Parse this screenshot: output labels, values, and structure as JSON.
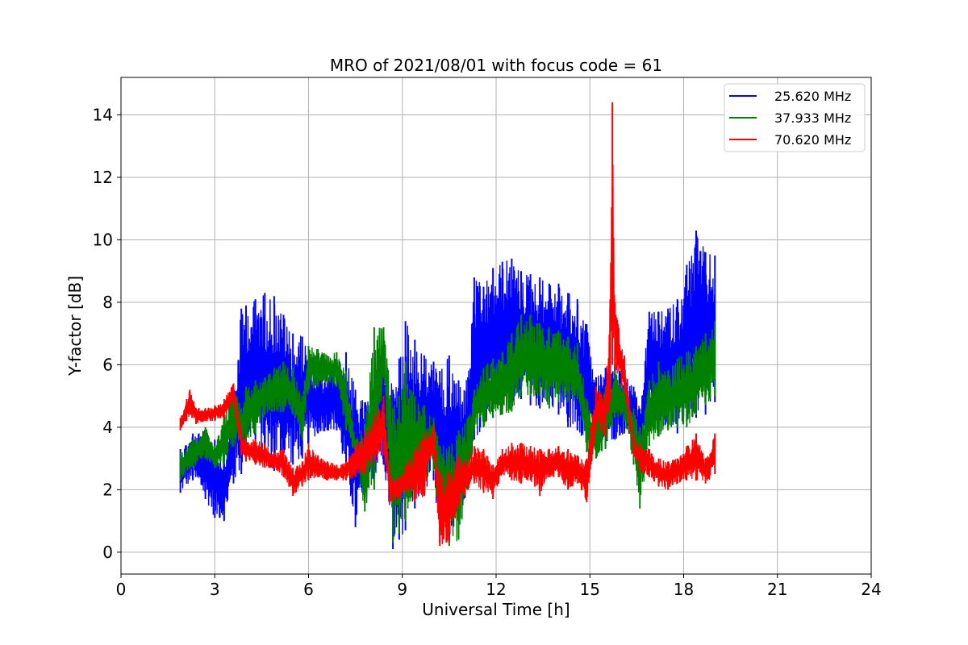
{
  "chart_data": {
    "type": "line",
    "title": "MRO of 2021/08/01 with focus code = 61",
    "xlabel": "Universal Time [h]",
    "ylabel": "Y-factor [dB]",
    "xlim": [
      0,
      24
    ],
    "ylim": [
      -0.7,
      15.2
    ],
    "xticks": [
      0,
      3,
      6,
      9,
      12,
      15,
      18,
      21,
      24
    ],
    "yticks": [
      0,
      2,
      4,
      6,
      8,
      10,
      12,
      14
    ],
    "grid": true,
    "legend_position": "top-right",
    "series": [
      {
        "name": "25.620 MHz",
        "color": "#0000ff",
        "x": [
          1.9,
          2.3,
          2.7,
          3.0,
          3.3,
          3.6,
          3.85,
          4.0,
          4.3,
          4.6,
          4.9,
          5.2,
          5.5,
          5.8,
          6.0,
          6.3,
          6.6,
          6.9,
          7.2,
          7.5,
          7.8,
          8.1,
          8.4,
          8.7,
          8.9,
          9.1,
          9.4,
          9.7,
          10.0,
          10.2,
          10.5,
          10.8,
          11.1,
          11.3,
          11.6,
          11.9,
          12.2,
          12.5,
          12.8,
          13.1,
          13.4,
          13.7,
          14.0,
          14.3,
          14.6,
          14.9,
          15.2,
          15.5,
          15.8,
          16.1,
          16.4,
          16.6,
          16.9,
          17.2,
          17.5,
          17.8,
          18.1,
          18.4,
          18.7,
          19.0
        ],
        "low": [
          1.9,
          2.3,
          1.7,
          1.1,
          1.0,
          2.2,
          2.5,
          3.4,
          3.6,
          2.9,
          2.6,
          2.9,
          2.8,
          3.0,
          3.5,
          3.8,
          3.9,
          3.9,
          2.4,
          0.8,
          1.6,
          2.4,
          2.8,
          0.1,
          0.4,
          0.7,
          1.4,
          1.8,
          2.3,
          0.3,
          0.5,
          1.1,
          2.0,
          3.6,
          4.0,
          4.3,
          4.6,
          4.8,
          4.9,
          4.7,
          4.6,
          4.8,
          4.4,
          4.0,
          3.9,
          3.5,
          3.3,
          3.4,
          3.6,
          3.8,
          3.6,
          3.0,
          4.3,
          4.2,
          4.0,
          3.8,
          4.2,
          4.3,
          4.4,
          4.8
        ],
        "high": [
          3.3,
          3.8,
          3.9,
          3.6,
          3.2,
          5.0,
          7.8,
          7.9,
          8.1,
          8.3,
          8.2,
          7.6,
          7.0,
          6.9,
          6.6,
          5.6,
          5.7,
          6.0,
          6.4,
          5.2,
          4.8,
          5.2,
          6.7,
          5.2,
          6.2,
          7.4,
          6.8,
          6.3,
          6.1,
          5.8,
          6.3,
          5.5,
          5.6,
          8.8,
          8.5,
          9.1,
          9.3,
          9.4,
          9.0,
          8.9,
          8.8,
          8.6,
          8.6,
          8.3,
          8.1,
          7.3,
          5.6,
          5.9,
          6.0,
          5.7,
          5.3,
          4.6,
          7.7,
          7.7,
          7.8,
          8.1,
          9.2,
          10.3,
          9.6,
          9.5
        ]
      },
      {
        "name": "37.933 MHz",
        "color": "#008000",
        "x": [
          1.9,
          2.3,
          2.7,
          3.0,
          3.3,
          3.6,
          3.85,
          4.0,
          4.3,
          4.6,
          4.9,
          5.2,
          5.5,
          5.8,
          6.0,
          6.3,
          6.6,
          6.9,
          7.2,
          7.5,
          7.8,
          8.1,
          8.4,
          8.7,
          8.9,
          9.1,
          9.4,
          9.7,
          10.0,
          10.2,
          10.5,
          10.8,
          11.1,
          11.3,
          11.6,
          11.9,
          12.2,
          12.5,
          12.8,
          13.1,
          13.4,
          13.7,
          14.0,
          14.3,
          14.6,
          14.9,
          15.2,
          15.5,
          15.8,
          16.1,
          16.4,
          16.6,
          16.9,
          17.2,
          17.5,
          17.8,
          18.1,
          18.4,
          18.7,
          19.0
        ],
        "low": [
          2.3,
          2.7,
          3.0,
          2.7,
          2.8,
          3.4,
          3.5,
          3.6,
          3.8,
          4.4,
          4.5,
          4.5,
          4.4,
          3.6,
          5.2,
          5.3,
          5.4,
          5.3,
          3.9,
          3.0,
          1.3,
          2.0,
          5.6,
          0.3,
          0.6,
          1.0,
          2.0,
          2.3,
          2.6,
          0.5,
          0.2,
          0.4,
          2.1,
          3.9,
          4.0,
          4.3,
          4.4,
          4.5,
          5.0,
          5.0,
          5.0,
          4.6,
          4.8,
          4.8,
          4.9,
          3.2,
          3.0,
          3.3,
          4.3,
          4.2,
          2.8,
          1.4,
          3.4,
          3.7,
          3.9,
          4.0,
          4.0,
          4.4,
          4.7,
          5.0
        ],
        "high": [
          3.2,
          3.6,
          4.0,
          3.4,
          4.4,
          5.4,
          4.6,
          5.3,
          5.5,
          5.6,
          5.9,
          6.1,
          5.9,
          5.0,
          6.6,
          6.5,
          6.3,
          6.4,
          5.8,
          3.6,
          4.1,
          7.2,
          7.2,
          4.6,
          5.0,
          6.1,
          5.0,
          4.7,
          4.3,
          3.4,
          3.4,
          3.9,
          4.3,
          5.2,
          5.9,
          6.2,
          6.4,
          7.0,
          7.6,
          7.6,
          7.3,
          7.2,
          7.1,
          6.9,
          6.7,
          4.9,
          4.3,
          5.3,
          5.8,
          5.4,
          4.6,
          4.0,
          5.5,
          6.1,
          5.8,
          6.2,
          6.4,
          6.6,
          7.0,
          7.4
        ]
      },
      {
        "name": "70.620 MHz",
        "color": "#ff0000",
        "x": [
          1.9,
          2.1,
          2.2,
          2.4,
          2.7,
          3.0,
          3.3,
          3.6,
          3.85,
          4.0,
          4.3,
          4.6,
          4.9,
          5.2,
          5.5,
          5.8,
          6.0,
          6.3,
          6.6,
          6.9,
          7.2,
          7.5,
          7.8,
          8.1,
          8.4,
          8.6,
          8.9,
          9.1,
          9.4,
          9.7,
          10.0,
          10.2,
          10.5,
          10.8,
          11.1,
          11.3,
          11.6,
          11.9,
          12.2,
          12.5,
          12.8,
          13.1,
          13.4,
          13.7,
          14.0,
          14.3,
          14.6,
          14.9,
          15.2,
          15.5,
          15.65,
          15.72,
          15.8,
          16.1,
          16.4,
          16.6,
          16.9,
          17.2,
          17.5,
          17.8,
          18.1,
          18.4,
          18.7,
          19.0
        ],
        "low": [
          3.9,
          4.2,
          4.4,
          4.1,
          4.2,
          4.2,
          4.3,
          4.8,
          3.1,
          2.9,
          2.8,
          2.7,
          2.7,
          2.4,
          1.8,
          2.1,
          2.3,
          2.4,
          2.3,
          2.3,
          2.3,
          2.4,
          2.5,
          2.9,
          3.1,
          1.6,
          1.7,
          1.9,
          1.6,
          1.8,
          3.2,
          0.2,
          0.3,
          1.4,
          2.0,
          2.2,
          1.9,
          1.7,
          2.5,
          2.3,
          2.2,
          2.3,
          1.8,
          2.4,
          2.4,
          2.0,
          2.2,
          1.6,
          3.9,
          3.7,
          4.8,
          6.0,
          5.9,
          5.1,
          3.1,
          2.6,
          2.4,
          2.1,
          2.0,
          2.2,
          2.3,
          2.3,
          2.2,
          2.5
        ],
        "high": [
          4.3,
          4.9,
          5.2,
          4.6,
          4.6,
          4.7,
          4.9,
          5.4,
          3.9,
          3.6,
          3.6,
          3.5,
          3.2,
          3.3,
          2.7,
          2.9,
          3.5,
          3.1,
          2.9,
          2.8,
          2.9,
          3.4,
          3.9,
          4.4,
          5.0,
          2.5,
          2.4,
          2.8,
          3.3,
          3.8,
          4.1,
          2.6,
          2.6,
          3.1,
          2.9,
          3.4,
          3.3,
          2.8,
          3.3,
          3.5,
          3.5,
          3.4,
          3.3,
          3.3,
          3.4,
          3.3,
          3.1,
          3.0,
          5.3,
          5.1,
          8.1,
          14.4,
          8.0,
          6.3,
          3.7,
          3.5,
          3.3,
          3.0,
          2.9,
          3.0,
          3.4,
          3.8,
          3.0,
          3.8
        ]
      }
    ]
  }
}
